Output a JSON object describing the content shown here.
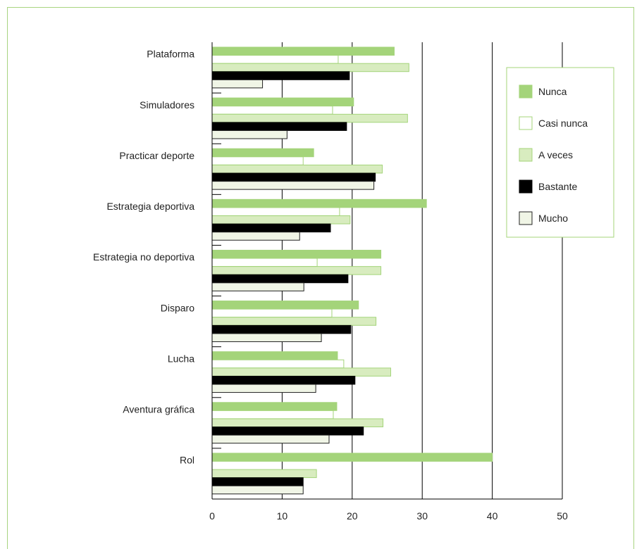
{
  "chart_data": {
    "type": "bar",
    "orientation": "horizontal",
    "title": "",
    "xlabel": "",
    "ylabel": "",
    "xlim": [
      0,
      50
    ],
    "xticks": [
      0,
      10,
      20,
      30,
      40,
      50
    ],
    "grid": "vertical",
    "legend_position": "right",
    "categories": [
      "Plataforma",
      "Simuladores",
      "Practicar deporte",
      "Estrategia deportiva",
      "Estrategia no deportiva",
      "Disparo",
      "Lucha",
      "Aventura gráfica",
      "Rol"
    ],
    "series": [
      {
        "name": "Nunca",
        "color": "#a4d47a",
        "stroke": "#a4d47a",
        "values": [
          26,
          20.2,
          14.5,
          30.6,
          24.1,
          20.9,
          17.9,
          17.8,
          40
        ]
      },
      {
        "name": "Casi nunca",
        "color": "#ffffff",
        "stroke": "#a4d47a",
        "values": [
          18,
          17.2,
          13,
          18.2,
          15,
          17.1,
          18.8,
          17.3,
          0
        ]
      },
      {
        "name": "A veces",
        "color": "#d8ecbf",
        "stroke": "#a4d47a",
        "values": [
          28.1,
          27.9,
          24.3,
          19.7,
          24.1,
          23.4,
          25.5,
          24.4,
          14.9
        ]
      },
      {
        "name": "Bastante",
        "color": "#000000",
        "stroke": "#000000",
        "values": [
          19.6,
          19.2,
          23.3,
          16.9,
          19.4,
          19.8,
          20.4,
          21.6,
          13
        ]
      },
      {
        "name": "Mucho",
        "color": "#f0f5e6",
        "stroke": "#222222",
        "values": [
          7.2,
          10.7,
          23.1,
          12.5,
          13.1,
          15.6,
          14.8,
          16.7,
          13
        ]
      }
    ]
  }
}
